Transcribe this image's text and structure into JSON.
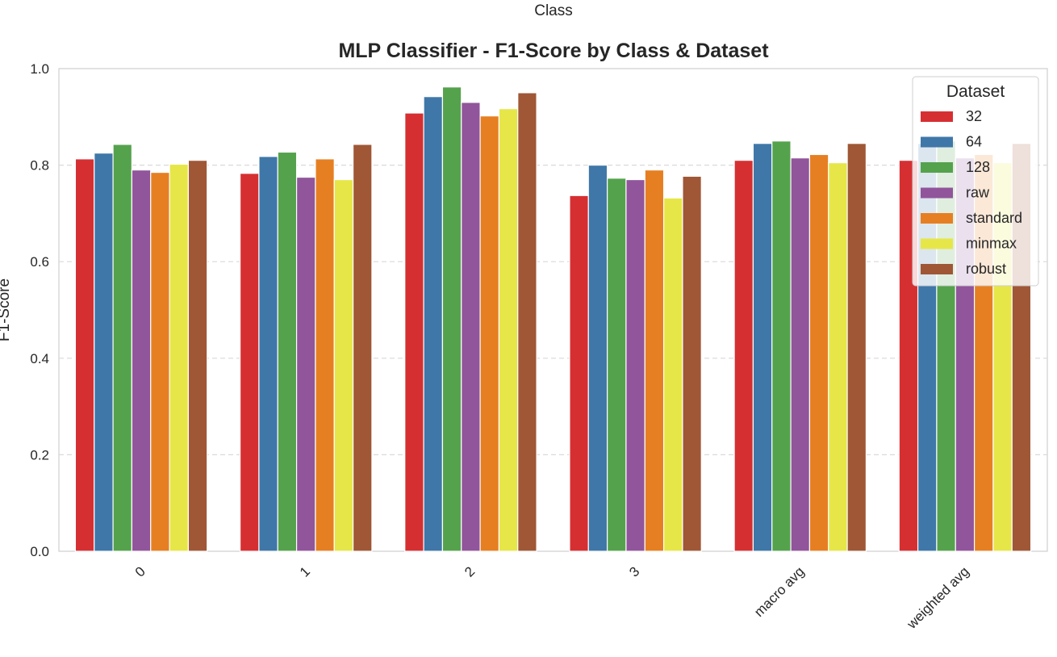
{
  "chart_data": {
    "type": "bar",
    "title": "MLP Classifier - F1-Score by Class & Dataset",
    "xlabel": "Class",
    "ylabel": "F1-Score",
    "categories": [
      "0",
      "1",
      "2",
      "3",
      "macro avg",
      "weighted avg"
    ],
    "ylim": [
      0,
      1.0
    ],
    "yticks": [
      "0.0",
      "0.2",
      "0.4",
      "0.6",
      "0.8",
      "1.0"
    ],
    "grid": "horizontal dashed",
    "legend": {
      "title": "Dataset",
      "placement": "top-right"
    },
    "series": [
      {
        "name": "32",
        "color": "#d62f32",
        "values": [
          0.813,
          0.783,
          0.908,
          0.737,
          0.81,
          0.81
        ]
      },
      {
        "name": "64",
        "color": "#3f77a8",
        "values": [
          0.825,
          0.818,
          0.942,
          0.8,
          0.845,
          0.845
        ]
      },
      {
        "name": "128",
        "color": "#55a24d",
        "values": [
          0.843,
          0.827,
          0.962,
          0.773,
          0.85,
          0.85
        ]
      },
      {
        "name": "raw",
        "color": "#91559b",
        "values": [
          0.79,
          0.775,
          0.93,
          0.77,
          0.815,
          0.815
        ]
      },
      {
        "name": "standard",
        "color": "#e67f22",
        "values": [
          0.785,
          0.813,
          0.902,
          0.79,
          0.822,
          0.822
        ]
      },
      {
        "name": "minmax",
        "color": "#e6e648",
        "values": [
          0.802,
          0.77,
          0.917,
          0.732,
          0.805,
          0.805
        ]
      },
      {
        "name": "robust",
        "color": "#9f5736",
        "values": [
          0.81,
          0.843,
          0.95,
          0.777,
          0.845,
          0.845
        ]
      }
    ]
  }
}
